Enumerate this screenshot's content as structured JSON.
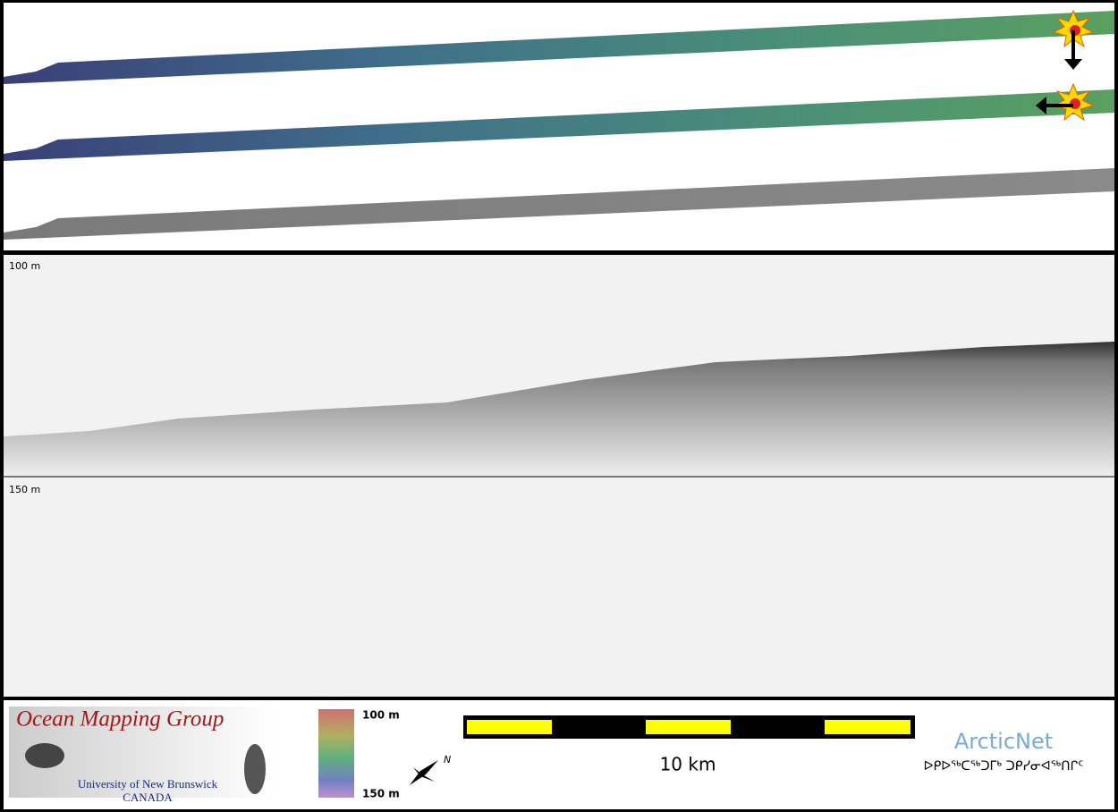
{
  "echogram": {
    "depth_top": "100 m",
    "depth_bottom": "150 m"
  },
  "footer": {
    "logo_title": "Ocean Mapping Group",
    "logo_university": "University of New Brunswick",
    "logo_country": "CANADA",
    "colorbar_top": "100 m",
    "colorbar_bottom": "150 m",
    "north": "N",
    "scale": "10 km",
    "partner": "ArcticNet",
    "partner_syllabics": "ᐅᑭᐅᖅᑕᖅᑐᒥᒃ ᑐᑭᓯᓂᐊᖅᑎᒋᑦ"
  }
}
